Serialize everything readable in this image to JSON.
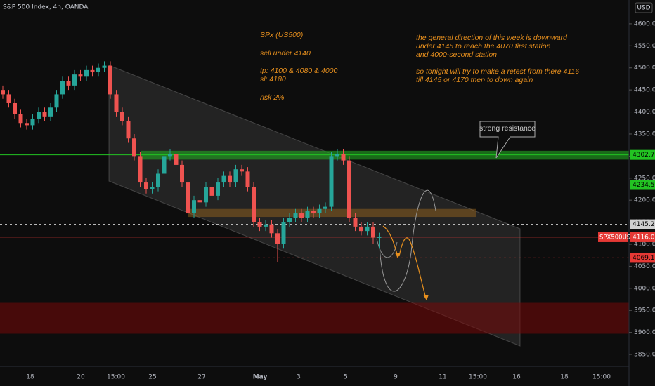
{
  "chart_data": {
    "type": "candlestick",
    "title": "S&P 500 Index, 4h, OANDA",
    "currency": "USD",
    "up_color": "#26a69a",
    "down_color": "#ef5350",
    "open": [
      4450,
      4440,
      4420,
      4395,
      4375,
      4370,
      4385,
      4400,
      4390,
      4410,
      4440,
      4470,
      4460,
      4485,
      4480,
      4495,
      4490,
      4500,
      4505,
      4440,
      4400,
      4380,
      4340,
      4300,
      4240,
      4225,
      4230,
      4260,
      4300,
      4305,
      4280,
      4240,
      4170,
      4200,
      4195,
      4230,
      4210,
      4240,
      4255,
      4240,
      4270,
      4265,
      4230,
      4150,
      4140,
      4145,
      4125,
      4100,
      4150,
      4160,
      4170,
      4160,
      4175,
      4170,
      4180,
      4185,
      4300,
      4305,
      4290,
      4160,
      4140,
      4130,
      4140,
      4115
    ],
    "high": [
      4460,
      4450,
      4430,
      4405,
      4385,
      4395,
      4410,
      4410,
      4420,
      4450,
      4480,
      4480,
      4495,
      4495,
      4505,
      4505,
      4510,
      4515,
      4515,
      4450,
      4410,
      4390,
      4350,
      4310,
      4250,
      4240,
      4270,
      4310,
      4315,
      4315,
      4290,
      4250,
      4210,
      4210,
      4240,
      4240,
      4250,
      4265,
      4265,
      4280,
      4280,
      4275,
      4240,
      4160,
      4155,
      4155,
      4135,
      4160,
      4170,
      4180,
      4180,
      4185,
      4185,
      4190,
      4195,
      4310,
      4315,
      4315,
      4300,
      4170,
      4150,
      4150,
      4150,
      4126
    ],
    "low": [
      4430,
      4410,
      4385,
      4365,
      4360,
      4360,
      4375,
      4380,
      4380,
      4400,
      4430,
      4450,
      4450,
      4470,
      4470,
      4480,
      4480,
      4490,
      4430,
      4390,
      4370,
      4330,
      4290,
      4230,
      4215,
      4215,
      4220,
      4250,
      4290,
      4270,
      4230,
      4160,
      4160,
      4185,
      4185,
      4200,
      4200,
      4230,
      4230,
      4230,
      4255,
      4220,
      4140,
      4130,
      4130,
      4115,
      4060,
      4090,
      4140,
      4150,
      4150,
      4150,
      4160,
      4160,
      4170,
      4175,
      4290,
      4280,
      4150,
      4130,
      4120,
      4120,
      4100,
      4090
    ],
    "close": [
      4440,
      4420,
      4395,
      4375,
      4370,
      4385,
      4400,
      4390,
      4410,
      4440,
      4470,
      4460,
      4485,
      4480,
      4495,
      4490,
      4500,
      4505,
      4440,
      4400,
      4380,
      4340,
      4300,
      4240,
      4225,
      4230,
      4260,
      4300,
      4305,
      4280,
      4240,
      4170,
      4200,
      4195,
      4230,
      4210,
      4240,
      4255,
      4240,
      4270,
      4265,
      4230,
      4150,
      4140,
      4145,
      4125,
      4100,
      4150,
      4160,
      4170,
      4160,
      4175,
      4170,
      4180,
      4185,
      4300,
      4305,
      4290,
      4160,
      4140,
      4130,
      4140,
      4115,
      4116
    ],
    "x_labels": [
      "18",
      "20",
      "15:00",
      "25",
      "27",
      "May",
      "3",
      "5",
      "9",
      "11",
      "15:00",
      "16",
      "18",
      "15:00"
    ],
    "ylim": [
      3823,
      4654
    ],
    "yticks": [
      {
        "value": 3850,
        "label": "3850.0"
      },
      {
        "value": 3900,
        "label": "3900.0"
      },
      {
        "value": 3950,
        "label": "3950.0"
      },
      {
        "value": 4000,
        "label": "4000.0"
      },
      {
        "value": 4050,
        "label": "4050.0"
      },
      {
        "value": 4100,
        "label": "4100.0"
      },
      {
        "value": 4150,
        "label": "4150.0"
      },
      {
        "value": 4200,
        "label": "4200.0"
      },
      {
        "value": 4250,
        "label": "4250.0"
      },
      {
        "value": 4300,
        "label": "4300.0"
      },
      {
        "value": 4350,
        "label": "4350.0"
      },
      {
        "value": 4400,
        "label": "4400.0"
      },
      {
        "value": 4450,
        "label": "4450.0"
      },
      {
        "value": 4500,
        "label": "4500.0"
      },
      {
        "value": 4550,
        "label": "4550.0"
      },
      {
        "value": 4600,
        "label": "4600.0"
      }
    ],
    "price_lines": [
      {
        "value": 4302.7,
        "label": "4302.7",
        "color": "#22c322",
        "style": "solid"
      },
      {
        "value": 4234.5,
        "label": "4234.5",
        "color": "#22c322",
        "style": "dashed"
      },
      {
        "value": 4145.2,
        "label": "4145.2",
        "color": "#d0d0d0",
        "style": "dashed"
      },
      {
        "value": 4069.1,
        "label": "4069.1",
        "color": "#e53935",
        "style": "dashed"
      }
    ],
    "last_price": {
      "name": "SPX500USD",
      "value": 4116.0,
      "label": "4116.0",
      "color": "#e53935"
    },
    "zones": [
      {
        "from": 4292,
        "to": 4312,
        "color": "rgba(34,170,34,0.6)"
      },
      {
        "from": 4162,
        "to": 4180,
        "color": "rgba(150,100,30,0.5)"
      },
      {
        "from": 3897,
        "to": 3967,
        "color": "rgba(120,10,10,0.55)"
      }
    ],
    "annotations_left": [
      "SPx (US500)",
      "sell under 4140",
      "tp: 4100  &  4080 & 4000",
      "sl: 4180",
      "risk 2%"
    ],
    "annotations_right": [
      "the general direction of this week is downward",
      " under 4145 to reach the 4070 first station",
      "and 4000-second station",
      "so tonight will try to make a retest from there 4116",
      "till 4145 or 4170 then to down again"
    ],
    "callout": "strong resistance"
  }
}
